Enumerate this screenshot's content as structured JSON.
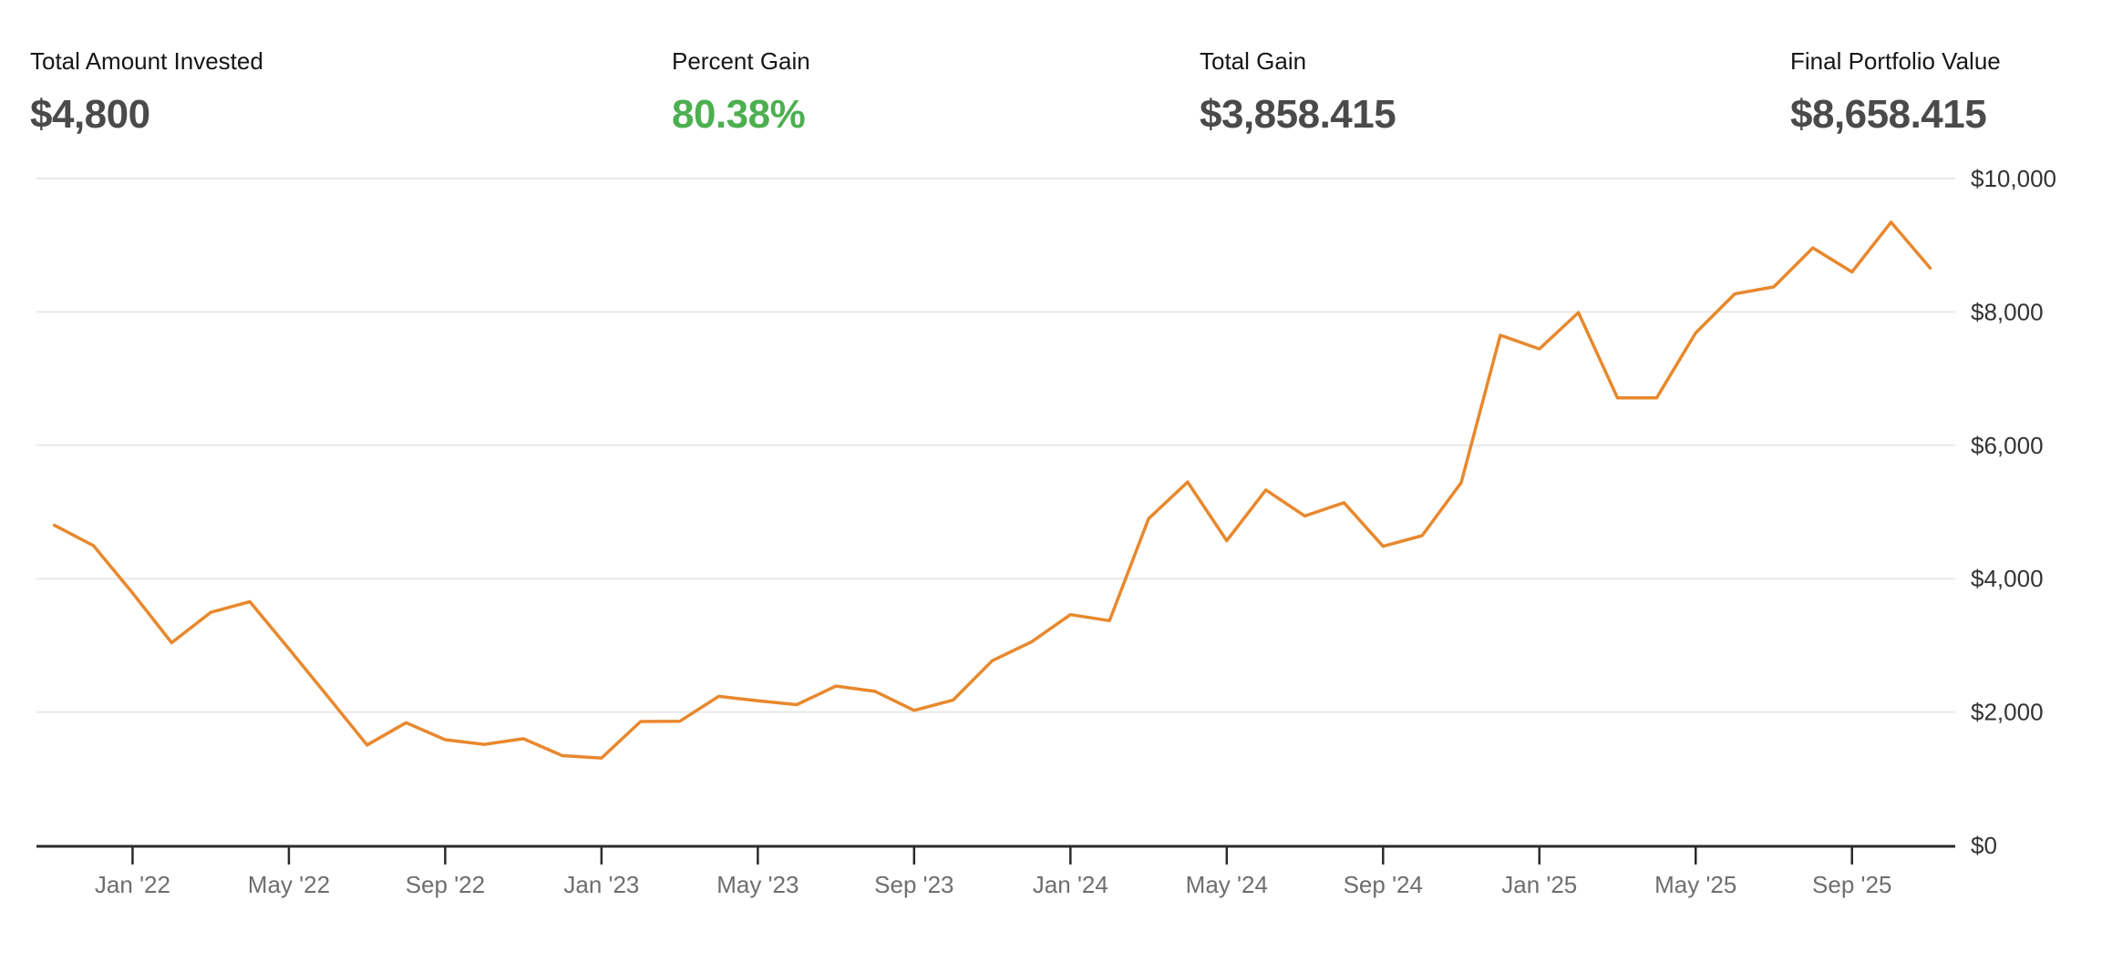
{
  "stats": [
    {
      "label": "Total Amount Invested",
      "value": "$4,800",
      "color": "#4a4a4a"
    },
    {
      "label": "Percent Gain",
      "value": "80.38%",
      "color": "#4caf50"
    },
    {
      "label": "Total Gain",
      "value": "$3,858.415",
      "color": "#4a4a4a"
    },
    {
      "label": "Final Portfolio Value",
      "value": "$8,658.415",
      "color": "#4a4a4a"
    }
  ],
  "chart_data": {
    "type": "line",
    "series_name": "portfolio-value",
    "x": [
      "Nov '21",
      "Dec '21",
      "Jan '22",
      "Feb '22",
      "Mar '22",
      "Apr '22",
      "May '22",
      "Jun '22",
      "Jul '22",
      "Aug '22",
      "Sep '22",
      "Oct '22",
      "Nov '22",
      "Dec '22",
      "Jan '23",
      "Feb '23",
      "Mar '23",
      "Apr '23",
      "May '23",
      "Jun '23",
      "Jul '23",
      "Aug '23",
      "Sep '23",
      "Oct '23",
      "Nov '23",
      "Dec '23",
      "Jan '24",
      "Feb '24",
      "Mar '24",
      "Apr '24",
      "May '24",
      "Jun '24",
      "Jul '24",
      "Aug '24",
      "Sep '24",
      "Oct '24",
      "Nov '24",
      "Dec '24",
      "Jan '25",
      "Feb '25",
      "Mar '25",
      "Apr '25",
      "May '25",
      "Jun '25",
      "Jul '25",
      "Aug '25",
      "Sep '25",
      "Oct '25",
      "Nov '25"
    ],
    "values": [
      4800,
      4495,
      3785,
      3040,
      3495,
      3655,
      2950,
      2230,
      1505,
      1840,
      1585,
      1515,
      1600,
      1345,
      1310,
      1858,
      1860,
      2235,
      2170,
      2110,
      2390,
      2310,
      2025,
      2180,
      2770,
      3050,
      3460,
      3370,
      4900,
      5450,
      4570,
      5330,
      4940,
      5140,
      4485,
      4645,
      5440,
      7650,
      7445,
      7990,
      6710,
      6710,
      7684,
      8270,
      8375,
      8960,
      8600,
      9345,
      8658.415
    ],
    "x_ticks": [
      {
        "index": 2,
        "label": "Jan '22"
      },
      {
        "index": 6,
        "label": "May '22"
      },
      {
        "index": 10,
        "label": "Sep '22"
      },
      {
        "index": 14,
        "label": "Jan '23"
      },
      {
        "index": 18,
        "label": "May '23"
      },
      {
        "index": 22,
        "label": "Sep '23"
      },
      {
        "index": 26,
        "label": "Jan '24"
      },
      {
        "index": 30,
        "label": "May '24"
      },
      {
        "index": 34,
        "label": "Sep '24"
      },
      {
        "index": 38,
        "label": "Jan '25"
      },
      {
        "index": 42,
        "label": "May '25"
      },
      {
        "index": 46,
        "label": "Sep '25"
      }
    ],
    "y_ticks": [
      {
        "value": 0,
        "label": "$0"
      },
      {
        "value": 2000,
        "label": "$2,000"
      },
      {
        "value": 4000,
        "label": "$4,000"
      },
      {
        "value": 6000,
        "label": "$6,000"
      },
      {
        "value": 8000,
        "label": "$8,000"
      },
      {
        "value": 10000,
        "label": "$10,000"
      }
    ],
    "ylim": [
      0,
      10000
    ],
    "grid": true,
    "legend": "none",
    "colors": {
      "line": "#e8882d",
      "gridline": "#e8e8e8",
      "axis": "#2b2b2b",
      "x_label": "#6e6e6e",
      "y_label": "#333333"
    }
  }
}
